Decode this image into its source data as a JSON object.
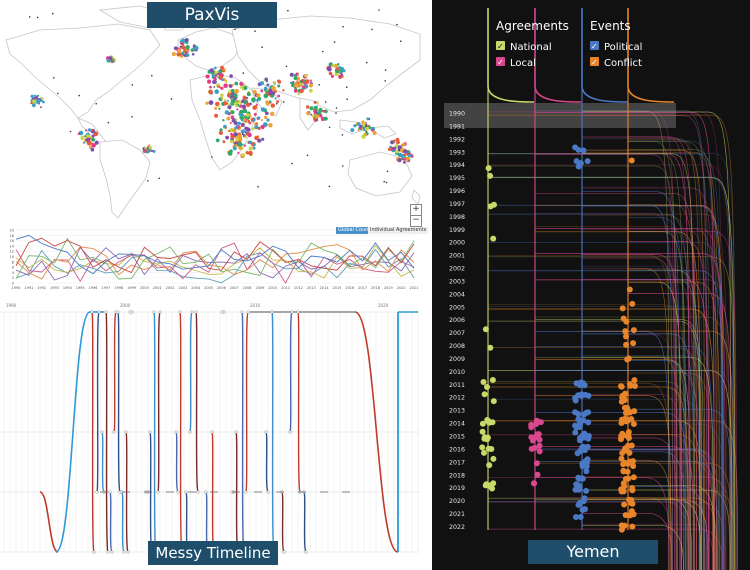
{
  "titles": {
    "paxvis": "PaxVis",
    "messy": "Messy Timeline",
    "yemen": "Yemen"
  },
  "map_panel": {
    "zoom_in": "+",
    "zoom_out": "−"
  },
  "line_chart": {
    "legend": [
      "Global Count",
      "Individual Agreements"
    ],
    "years": [
      "1990",
      "1991",
      "1992",
      "1993",
      "1994",
      "1995",
      "1996",
      "1997",
      "1998",
      "1999",
      "2000",
      "2001",
      "2002",
      "2003",
      "2004",
      "2005",
      "2006",
      "2007",
      "2008",
      "2009",
      "2010",
      "2011",
      "2012",
      "2013",
      "2014",
      "2015",
      "2016",
      "2017",
      "2018",
      "2019",
      "2020",
      "2021"
    ],
    "y_ticks": [
      "0",
      "2",
      "4",
      "6",
      "8",
      "10",
      "12",
      "14",
      "16",
      "18",
      "20"
    ]
  },
  "messy_timeline": {
    "axis_labels": [
      "1990",
      "2000",
      "2010",
      "2020"
    ]
  },
  "yemen": {
    "headers": {
      "agreements": "Agreements",
      "events": "Events"
    },
    "legend": [
      {
        "label": "National",
        "color": "#c8d86a"
      },
      {
        "label": "Local",
        "color": "#d9488f"
      },
      {
        "label": "Political",
        "color": "#4a78c4"
      },
      {
        "label": "Conflict",
        "color": "#e8842a"
      }
    ],
    "years": [
      "1990",
      "1991",
      "1992",
      "1993",
      "1994",
      "1995",
      "1996",
      "1997",
      "1998",
      "1999",
      "2000",
      "2001",
      "2002",
      "2003",
      "2004",
      "2005",
      "2006",
      "2007",
      "2008",
      "2009",
      "2010",
      "2011",
      "2012",
      "2013",
      "2014",
      "2015",
      "2016",
      "2017",
      "2018",
      "2019",
      "2020",
      "2021",
      "2022"
    ]
  }
}
